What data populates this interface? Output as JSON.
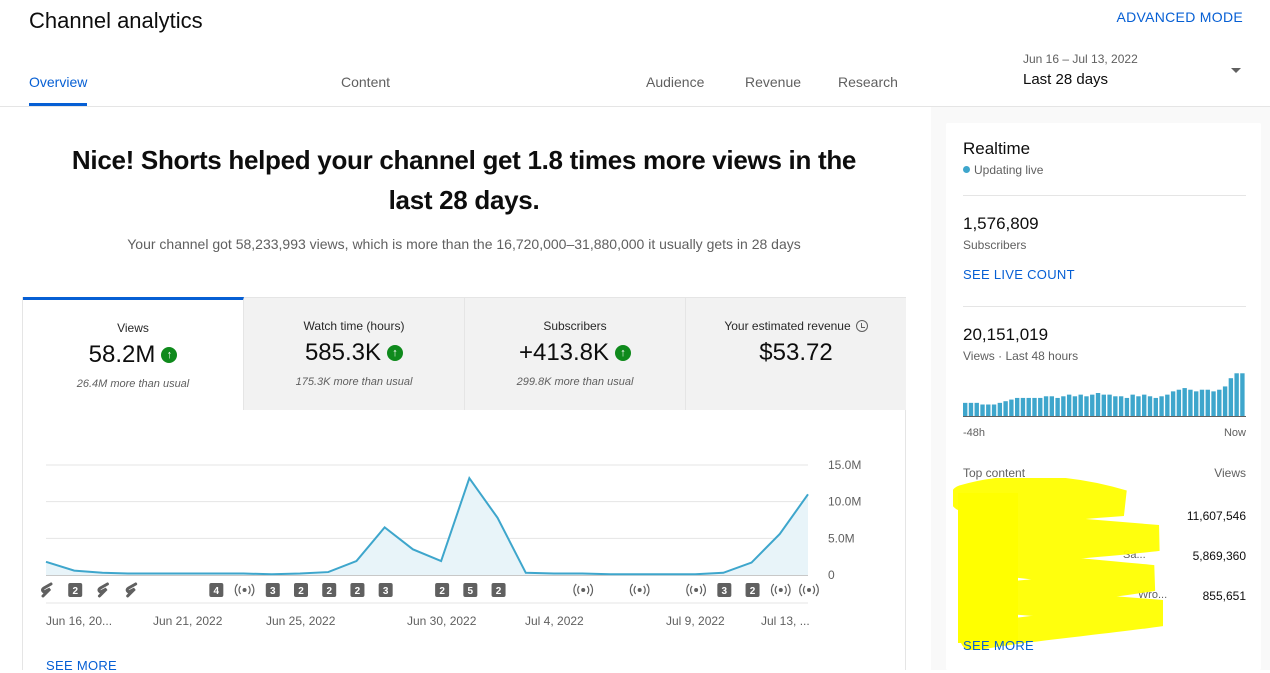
{
  "header": {
    "title": "Channel analytics",
    "advanced_mode": "ADVANCED MODE",
    "tabs": [
      {
        "label": "Overview",
        "active": true
      },
      {
        "label": "Content",
        "active": false
      },
      {
        "label": "Audience",
        "active": false
      },
      {
        "label": "Revenue",
        "active": false
      },
      {
        "label": "Research",
        "active": false
      }
    ],
    "date_range": "Jun 16 – Jul 13, 2022",
    "date_label": "Last 28 days",
    "accent_color": "#065fd4"
  },
  "summary": {
    "headline": "Nice! Shorts helped your channel get 1.8 times more views in the last 28 days.",
    "subline": "Your channel got 58,233,993 views, which is more than the 16,720,000–31,880,000 it usually gets in 28 days"
  },
  "metrics": [
    {
      "label": "Views",
      "value": "58.2M",
      "note": "26.4M more than usual",
      "trend_icon": "arrow-up-icon",
      "active": true
    },
    {
      "label": "Watch time (hours)",
      "value": "585.3K",
      "note": "175.3K more than usual",
      "trend_icon": "arrow-up-icon",
      "active": false
    },
    {
      "label": "Subscribers",
      "value": "+413.8K",
      "note": "299.8K more than usual",
      "trend_icon": "arrow-up-icon",
      "active": false
    },
    {
      "label": "Your estimated revenue",
      "value": "$53.72",
      "note": "",
      "info_icon": "clock-icon",
      "active": false
    }
  ],
  "chart_data": {
    "type": "area",
    "series": [
      {
        "values": [
          1.8,
          0.6,
          0.3,
          0.2,
          0.2,
          0.2,
          0.2,
          0.2,
          0.1,
          0.2,
          0.4,
          1.9,
          6.5,
          3.5,
          1.9,
          13.2,
          7.8,
          0.3,
          0.2,
          0.2,
          0.1,
          0.1,
          0.1,
          0.1,
          0.3,
          1.7,
          5.6,
          11.0
        ]
      }
    ],
    "x_tick_labels": [
      "Jun 16, 20...",
      "Jun 21, 2022",
      "Jun 25, 2022",
      "Jun 30, 2022",
      "Jul 4, 2022",
      "Jul 9, 2022",
      "Jul 13, ..."
    ],
    "y_tick_labels": [
      "15.0M",
      "10.0M",
      "5.0M",
      "0"
    ],
    "ylim": [
      0,
      15
    ],
    "y_unit": "M",
    "line_color": "#3ea6cc",
    "fill_color": "#e8f4f9",
    "event_markers": [
      {
        "day": 1,
        "type": "short"
      },
      {
        "day": 2,
        "type": "count",
        "label": "2"
      },
      {
        "day": 3,
        "type": "short"
      },
      {
        "day": 4,
        "type": "short"
      },
      {
        "day": 7,
        "type": "count",
        "label": "4"
      },
      {
        "day": 8,
        "type": "live"
      },
      {
        "day": 9,
        "type": "count",
        "label": "3"
      },
      {
        "day": 10,
        "type": "count",
        "label": "2"
      },
      {
        "day": 11,
        "type": "count",
        "label": "2"
      },
      {
        "day": 12,
        "type": "count",
        "label": "2"
      },
      {
        "day": 13,
        "type": "count",
        "label": "3"
      },
      {
        "day": 15,
        "type": "count",
        "label": "2"
      },
      {
        "day": 16,
        "type": "count",
        "label": "5"
      },
      {
        "day": 17,
        "type": "count",
        "label": "2"
      },
      {
        "day": 20,
        "type": "live"
      },
      {
        "day": 22,
        "type": "live"
      },
      {
        "day": 24,
        "type": "live"
      },
      {
        "day": 25,
        "type": "count",
        "label": "3"
      },
      {
        "day": 26,
        "type": "count",
        "label": "2"
      },
      {
        "day": 27,
        "type": "live"
      },
      {
        "day": 28,
        "type": "live"
      }
    ]
  },
  "see_more_main": "SEE MORE",
  "realtime": {
    "title": "Realtime",
    "status": "Updating live",
    "subscribers_value": "1,576,809",
    "subscribers_label": "Subscribers",
    "see_live_count": "SEE LIVE COUNT",
    "views_value": "20,151,019",
    "views_label": "Views · Last 48 hours",
    "bar_values": [
      8,
      8,
      8,
      7,
      7,
      7,
      8,
      9,
      10,
      11,
      11,
      11,
      11,
      11,
      12,
      12,
      11,
      12,
      13,
      12,
      13,
      12,
      13,
      14,
      13,
      13,
      12,
      12,
      11,
      13,
      12,
      13,
      12,
      11,
      12,
      13,
      15,
      16,
      17,
      16,
      15,
      16,
      16,
      15,
      16,
      18,
      23,
      26,
      26
    ],
    "axis_start": "-48h",
    "axis_end": "Now",
    "top_content_label": "Top content",
    "top_content_views_label": "Views",
    "top_content": [
      {
        "title": "",
        "views": "11,607,546"
      },
      {
        "title": "Sa...",
        "views": "5,869,360"
      },
      {
        "title": "Wro...",
        "views": "855,651"
      }
    ],
    "see_more": "SEE MORE"
  }
}
